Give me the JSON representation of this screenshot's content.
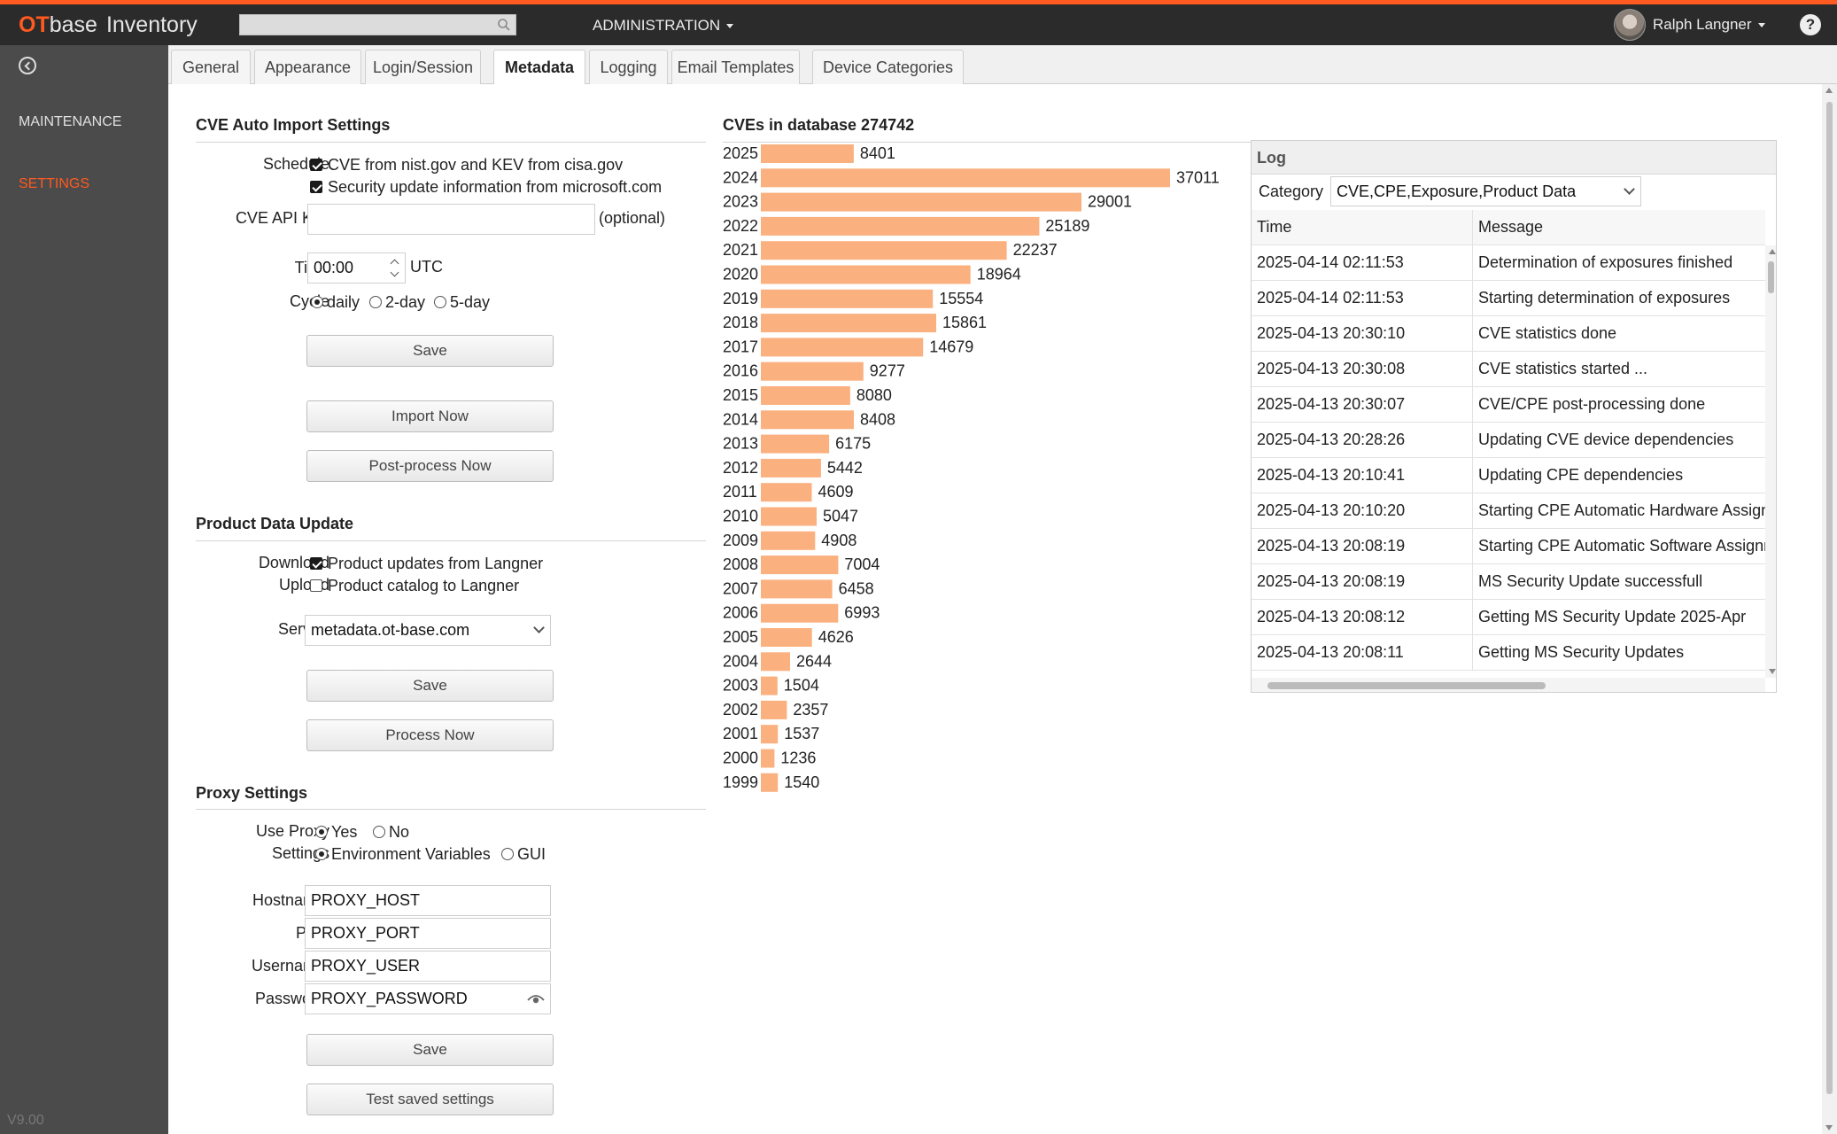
{
  "app": {
    "brand_ot": "OT",
    "brand_base": "base",
    "brand_product": "Inventory",
    "menu_admin": "ADMINISTRATION",
    "user_name": "Ralph Langner",
    "help": "?",
    "accent_color": "#ff5a1f"
  },
  "sidebar": {
    "items": [
      {
        "label": "MAINTENANCE"
      },
      {
        "label": "SETTINGS"
      }
    ],
    "version": "V9.00"
  },
  "tabs": [
    {
      "label": "General"
    },
    {
      "label": "Appearance"
    },
    {
      "label": "Login/Session"
    },
    {
      "label": "Metadata"
    },
    {
      "label": "Logging"
    },
    {
      "label": "Email Templates"
    },
    {
      "label": "Device Categories"
    }
  ],
  "cve_import": {
    "title": "CVE Auto Import Settings",
    "schedule_label": "Schedule",
    "opt_nist": "CVE from nist.gov and KEV from cisa.gov",
    "opt_ms": "Security update information from microsoft.com",
    "api_key_label": "CVE API Key",
    "api_key_value": "",
    "api_key_hint": "(optional)",
    "time_label": "Time",
    "time_value": "00:00",
    "time_unit": "UTC",
    "cycle_label": "Cycle",
    "cycle_options": [
      "daily",
      "2-day",
      "5-day"
    ],
    "save": "Save",
    "import_now": "Import Now",
    "postprocess_now": "Post-process Now"
  },
  "product_data": {
    "title": "Product Data Update",
    "download_label": "Download",
    "download_opt": "Product updates from Langner",
    "upload_label": "Upload",
    "upload_opt": "Product catalog to Langner",
    "server_label": "Server",
    "server_value": "metadata.ot-base.com",
    "save": "Save",
    "process_now": "Process Now"
  },
  "proxy": {
    "title": "Proxy Settings",
    "use_proxy_label": "Use Proxy",
    "yes": "Yes",
    "no": "No",
    "settings_label": "Settings",
    "env_vars": "Environment Variables",
    "gui": "GUI",
    "hostname_label": "Hostname",
    "hostname_value": "PROXY_HOST",
    "port_label": "Port",
    "port_value": "PROXY_PORT",
    "username_label": "Username",
    "username_value": "PROXY_USER",
    "password_label": "Password",
    "password_value": "PROXY_PASSWORD",
    "save": "Save",
    "test": "Test saved settings"
  },
  "cve_stats": {
    "title": "CVEs in database 274742"
  },
  "chart_data": {
    "type": "bar",
    "orientation": "horizontal",
    "bar_color": "#fbb07f",
    "categories": [
      "2025",
      "2024",
      "2023",
      "2022",
      "2021",
      "2020",
      "2019",
      "2018",
      "2017",
      "2016",
      "2015",
      "2014",
      "2013",
      "2012",
      "2011",
      "2010",
      "2009",
      "2008",
      "2007",
      "2006",
      "2005",
      "2004",
      "2003",
      "2002",
      "2001",
      "2000",
      "1999"
    ],
    "values": [
      8401,
      37011,
      29001,
      25189,
      22237,
      18964,
      15554,
      15861,
      14679,
      9277,
      8080,
      8408,
      6175,
      5442,
      4609,
      5047,
      4908,
      7004,
      6458,
      6993,
      4626,
      2644,
      1504,
      2357,
      1537,
      1236,
      1540
    ]
  },
  "log": {
    "title": "Log",
    "category_label": "Category",
    "category_value": "CVE,CPE,Exposure,Product Data",
    "col_time": "Time",
    "col_message": "Message",
    "rows": [
      {
        "time": "2025-04-14 02:11:53",
        "message": "Determination of exposures finished"
      },
      {
        "time": "2025-04-14 02:11:53",
        "message": "Starting determination of exposures"
      },
      {
        "time": "2025-04-13 20:30:10",
        "message": "CVE statistics done"
      },
      {
        "time": "2025-04-13 20:30:08",
        "message": "CVE statistics started ..."
      },
      {
        "time": "2025-04-13 20:30:07",
        "message": "CVE/CPE post-processing done"
      },
      {
        "time": "2025-04-13 20:28:26",
        "message": "Updating CVE device dependencies"
      },
      {
        "time": "2025-04-13 20:10:41",
        "message": "Updating CPE dependencies"
      },
      {
        "time": "2025-04-13 20:10:20",
        "message": "Starting CPE Automatic Hardware Assignment"
      },
      {
        "time": "2025-04-13 20:08:19",
        "message": "Starting CPE Automatic Software Assignment"
      },
      {
        "time": "2025-04-13 20:08:19",
        "message": "MS Security Update successfull"
      },
      {
        "time": "2025-04-13 20:08:12",
        "message": "Getting MS Security Update 2025-Apr"
      },
      {
        "time": "2025-04-13 20:08:11",
        "message": "Getting MS Security Updates"
      }
    ]
  }
}
